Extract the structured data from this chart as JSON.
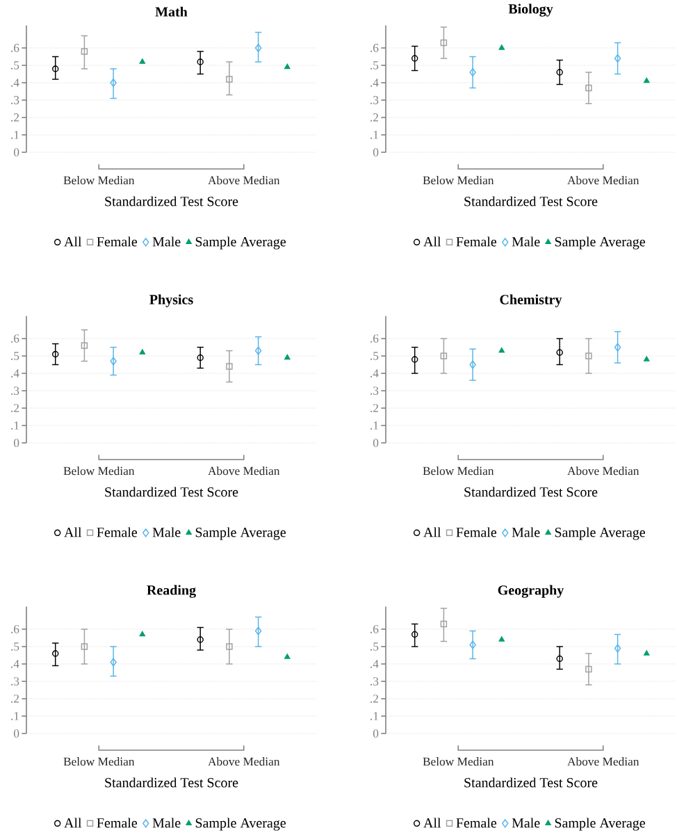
{
  "chart_data": [
    {
      "type": "scatter",
      "title": "Math",
      "xlabel": "Standardized Test Score",
      "categories": [
        "Below Median",
        "Above Median"
      ],
      "ylim": [
        0,
        0.73
      ],
      "yticks": [
        0,
        {
          "value": 0.1,
          "label": ".1"
        },
        {
          "value": 0.2,
          "label": ".2"
        },
        {
          "value": 0.3,
          "label": ".3"
        },
        {
          "value": 0.4,
          "label": ".4"
        },
        {
          "value": 0.5,
          "label": ".5"
        },
        {
          "value": 0.6,
          "label": ".6"
        }
      ],
      "grid": "y",
      "legend": "bottom",
      "series": [
        {
          "name": "All",
          "color": "#000000",
          "marker": "circle",
          "values": [
            0.48,
            0.52
          ],
          "errors": [
            [
              0.42,
              0.55
            ],
            [
              0.45,
              0.58
            ]
          ]
        },
        {
          "name": "Female",
          "color": "#a0a0a0",
          "marker": "square",
          "values": [
            0.58,
            0.42
          ],
          "errors": [
            [
              0.48,
              0.67
            ],
            [
              0.33,
              0.52
            ]
          ]
        },
        {
          "name": "Male",
          "color": "#56b4e9",
          "marker": "diamond",
          "values": [
            0.4,
            0.6
          ],
          "errors": [
            [
              0.31,
              0.48
            ],
            [
              0.52,
              0.69
            ]
          ]
        },
        {
          "name": "Sample Average",
          "color": "#009e73",
          "marker": "triangle",
          "values": [
            0.52,
            0.49
          ]
        }
      ]
    },
    {
      "type": "scatter",
      "title": "Biology",
      "xlabel": "Standardized Test Score",
      "categories": [
        "Below Median",
        "Above Median"
      ],
      "ylim": [
        0,
        0.73
      ],
      "yticks": [
        0,
        {
          "value": 0.1,
          "label": ".1"
        },
        {
          "value": 0.2,
          "label": ".2"
        },
        {
          "value": 0.3,
          "label": ".3"
        },
        {
          "value": 0.4,
          "label": ".4"
        },
        {
          "value": 0.5,
          "label": ".5"
        },
        {
          "value": 0.6,
          "label": ".6"
        }
      ],
      "grid": "y",
      "legend": "bottom",
      "series": [
        {
          "name": "All",
          "color": "#000000",
          "marker": "circle",
          "values": [
            0.54,
            0.46
          ],
          "errors": [
            [
              0.47,
              0.61
            ],
            [
              0.39,
              0.53
            ]
          ]
        },
        {
          "name": "Female",
          "color": "#a0a0a0",
          "marker": "square",
          "values": [
            0.63,
            0.37
          ],
          "errors": [
            [
              0.54,
              0.72
            ],
            [
              0.28,
              0.46
            ]
          ]
        },
        {
          "name": "Male",
          "color": "#56b4e9",
          "marker": "diamond",
          "values": [
            0.46,
            0.54
          ],
          "errors": [
            [
              0.37,
              0.55
            ],
            [
              0.45,
              0.63
            ]
          ]
        },
        {
          "name": "Sample Average",
          "color": "#009e73",
          "marker": "triangle",
          "values": [
            0.6,
            0.41
          ]
        }
      ]
    },
    {
      "type": "scatter",
      "title": "Physics",
      "xlabel": "Standardized Test Score",
      "categories": [
        "Below Median",
        "Above Median"
      ],
      "ylim": [
        0,
        0.73
      ],
      "yticks": [
        0,
        {
          "value": 0.1,
          "label": ".1"
        },
        {
          "value": 0.2,
          "label": ".2"
        },
        {
          "value": 0.3,
          "label": ".3"
        },
        {
          "value": 0.4,
          "label": ".4"
        },
        {
          "value": 0.5,
          "label": ".5"
        },
        {
          "value": 0.6,
          "label": ".6"
        }
      ],
      "grid": "y",
      "legend": "bottom",
      "series": [
        {
          "name": "All",
          "color": "#000000",
          "marker": "circle",
          "values": [
            0.51,
            0.49
          ],
          "errors": [
            [
              0.45,
              0.57
            ],
            [
              0.43,
              0.55
            ]
          ]
        },
        {
          "name": "Female",
          "color": "#a0a0a0",
          "marker": "square",
          "values": [
            0.56,
            0.44
          ],
          "errors": [
            [
              0.47,
              0.65
            ],
            [
              0.35,
              0.53
            ]
          ]
        },
        {
          "name": "Male",
          "color": "#56b4e9",
          "marker": "diamond",
          "values": [
            0.47,
            0.53
          ],
          "errors": [
            [
              0.39,
              0.55
            ],
            [
              0.45,
              0.61
            ]
          ]
        },
        {
          "name": "Sample Average",
          "color": "#009e73",
          "marker": "triangle",
          "values": [
            0.52,
            0.49
          ]
        }
      ]
    },
    {
      "type": "scatter",
      "title": "Chemistry",
      "xlabel": "Standardized Test Score",
      "categories": [
        "Below Median",
        "Above Median"
      ],
      "ylim": [
        0,
        0.73
      ],
      "yticks": [
        0,
        {
          "value": 0.1,
          "label": ".1"
        },
        {
          "value": 0.2,
          "label": ".2"
        },
        {
          "value": 0.3,
          "label": ".3"
        },
        {
          "value": 0.4,
          "label": ".4"
        },
        {
          "value": 0.5,
          "label": ".5"
        },
        {
          "value": 0.6,
          "label": ".6"
        }
      ],
      "grid": "y",
      "legend": "bottom",
      "series": [
        {
          "name": "All",
          "color": "#000000",
          "marker": "circle",
          "values": [
            0.48,
            0.52
          ],
          "errors": [
            [
              0.4,
              0.55
            ],
            [
              0.45,
              0.6
            ]
          ]
        },
        {
          "name": "Female",
          "color": "#a0a0a0",
          "marker": "square",
          "values": [
            0.5,
            0.5
          ],
          "errors": [
            [
              0.4,
              0.6
            ],
            [
              0.4,
              0.6
            ]
          ]
        },
        {
          "name": "Male",
          "color": "#56b4e9",
          "marker": "diamond",
          "values": [
            0.45,
            0.55
          ],
          "errors": [
            [
              0.36,
              0.54
            ],
            [
              0.46,
              0.64
            ]
          ]
        },
        {
          "name": "Sample Average",
          "color": "#009e73",
          "marker": "triangle",
          "values": [
            0.53,
            0.48
          ]
        }
      ]
    },
    {
      "type": "scatter",
      "title": "Reading",
      "xlabel": "Standardized Test Score",
      "categories": [
        "Below Median",
        "Above Median"
      ],
      "ylim": [
        0,
        0.73
      ],
      "yticks": [
        0,
        {
          "value": 0.1,
          "label": ".1"
        },
        {
          "value": 0.2,
          "label": ".2"
        },
        {
          "value": 0.3,
          "label": ".3"
        },
        {
          "value": 0.4,
          "label": ".4"
        },
        {
          "value": 0.5,
          "label": ".5"
        },
        {
          "value": 0.6,
          "label": ".6"
        }
      ],
      "grid": "y",
      "legend": "bottom",
      "series": [
        {
          "name": "All",
          "color": "#000000",
          "marker": "circle",
          "values": [
            0.46,
            0.54
          ],
          "errors": [
            [
              0.39,
              0.52
            ],
            [
              0.48,
              0.61
            ]
          ]
        },
        {
          "name": "Female",
          "color": "#a0a0a0",
          "marker": "square",
          "values": [
            0.5,
            0.5
          ],
          "errors": [
            [
              0.4,
              0.6
            ],
            [
              0.4,
              0.6
            ]
          ]
        },
        {
          "name": "Male",
          "color": "#56b4e9",
          "marker": "diamond",
          "values": [
            0.41,
            0.59
          ],
          "errors": [
            [
              0.33,
              0.5
            ],
            [
              0.5,
              0.67
            ]
          ]
        },
        {
          "name": "Sample Average",
          "color": "#009e73",
          "marker": "triangle",
          "values": [
            0.57,
            0.44
          ]
        }
      ]
    },
    {
      "type": "scatter",
      "title": "Geography",
      "xlabel": "Standardized Test Score",
      "categories": [
        "Below Median",
        "Above Median"
      ],
      "ylim": [
        0,
        0.73
      ],
      "yticks": [
        0,
        {
          "value": 0.1,
          "label": ".1"
        },
        {
          "value": 0.2,
          "label": ".2"
        },
        {
          "value": 0.3,
          "label": ".3"
        },
        {
          "value": 0.4,
          "label": ".4"
        },
        {
          "value": 0.5,
          "label": ".5"
        },
        {
          "value": 0.6,
          "label": ".6"
        }
      ],
      "grid": "y",
      "legend": "bottom",
      "series": [
        {
          "name": "All",
          "color": "#000000",
          "marker": "circle",
          "values": [
            0.57,
            0.43
          ],
          "errors": [
            [
              0.5,
              0.63
            ],
            [
              0.37,
              0.5
            ]
          ]
        },
        {
          "name": "Female",
          "color": "#a0a0a0",
          "marker": "square",
          "values": [
            0.63,
            0.37
          ],
          "errors": [
            [
              0.53,
              0.72
            ],
            [
              0.28,
              0.46
            ]
          ]
        },
        {
          "name": "Male",
          "color": "#56b4e9",
          "marker": "diamond",
          "values": [
            0.51,
            0.49
          ],
          "errors": [
            [
              0.43,
              0.59
            ],
            [
              0.4,
              0.57
            ]
          ]
        },
        {
          "name": "Sample Average",
          "color": "#009e73",
          "marker": "triangle",
          "values": [
            0.54,
            0.46
          ]
        }
      ]
    }
  ]
}
